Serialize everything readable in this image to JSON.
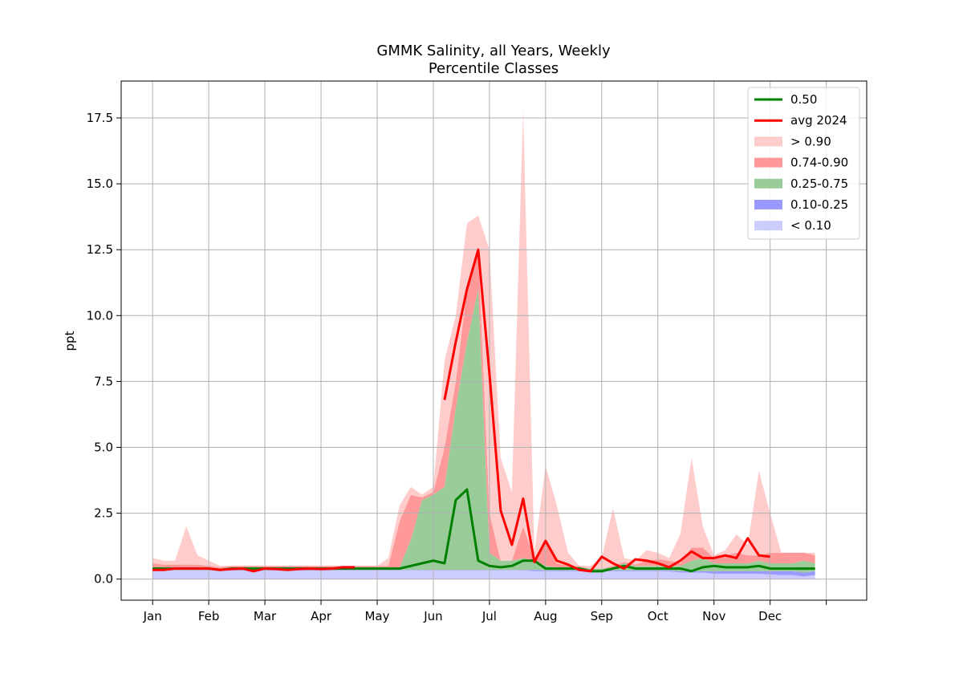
{
  "chart_data": {
    "type": "area",
    "title": "GMMK Salinity, all Years, Weekly",
    "subtitle": "Percentile Classes",
    "xlabel": "",
    "ylabel": "ppt",
    "ylim": [
      -0.8,
      18.9
    ],
    "yticks": [
      0.0,
      2.5,
      5.0,
      7.5,
      10.0,
      12.5,
      15.0,
      17.5
    ],
    "ytick_labels": [
      "0.0",
      "2.5",
      "5.0",
      "7.5",
      "10.0",
      "12.5",
      "15.0",
      "17.5"
    ],
    "x_unit": "week of year",
    "xlim": [
      -2.8,
      63.6
    ],
    "xticks": [
      0,
      5,
      10,
      15,
      20,
      25,
      30,
      35,
      40,
      45,
      50,
      55,
      60
    ],
    "xtick_labels": [
      "Jan",
      "Feb",
      "Mar",
      "Apr",
      "May",
      "Jun",
      "Jul",
      "Aug",
      "Sep",
      "Oct",
      "Nov",
      "Dec",
      ""
    ],
    "grid": true,
    "legend_position": "top-right",
    "legend": [
      {
        "label": "0.50",
        "kind": "line",
        "color": "#008000"
      },
      {
        "label": "avg 2024",
        "kind": "line",
        "color": "#ff0000"
      },
      {
        "label": "> 0.90",
        "kind": "band",
        "color": "#ffcccc"
      },
      {
        "label": "0.74-0.90",
        "kind": "band",
        "color": "#ff9999"
      },
      {
        "label": "0.25-0.75",
        "kind": "band",
        "color": "#99cc99"
      },
      {
        "label": "0.10-0.25",
        "kind": "band",
        "color": "#9999ff"
      },
      {
        "label": "< 0.10",
        "kind": "band",
        "color": "#ccccff"
      }
    ],
    "weeks": [
      0,
      1,
      2,
      3,
      4,
      5,
      6,
      7,
      8,
      9,
      10,
      11,
      12,
      13,
      14,
      15,
      16,
      17,
      18,
      19,
      20,
      21,
      22,
      23,
      24,
      25,
      26,
      27,
      28,
      29,
      30,
      31,
      32,
      33,
      34,
      35,
      36,
      37,
      38,
      39,
      40,
      41,
      42,
      43,
      44,
      45,
      46,
      47,
      48,
      49,
      50,
      51,
      52,
      53,
      54,
      55,
      56,
      57,
      58,
      59
    ],
    "p10": [
      0.35,
      0.35,
      0.35,
      0.35,
      0.35,
      0.35,
      0.33,
      0.33,
      0.33,
      0.33,
      0.33,
      0.33,
      0.33,
      0.33,
      0.33,
      0.33,
      0.33,
      0.33,
      0.33,
      0.33,
      0.33,
      0.33,
      0.33,
      0.33,
      0.33,
      0.33,
      0.33,
      0.33,
      0.33,
      0.33,
      0.33,
      0.33,
      0.33,
      0.33,
      0.3,
      0.3,
      0.3,
      0.3,
      0.3,
      0.3,
      0.3,
      0.3,
      0.3,
      0.3,
      0.3,
      0.3,
      0.3,
      0.25,
      0.25,
      0.25,
      0.2,
      0.2,
      0.2,
      0.2,
      0.2,
      0.18,
      0.15,
      0.15,
      0.1,
      0.15
    ],
    "p25": [
      0.35,
      0.35,
      0.35,
      0.35,
      0.35,
      0.35,
      0.35,
      0.35,
      0.35,
      0.35,
      0.35,
      0.35,
      0.35,
      0.35,
      0.35,
      0.35,
      0.35,
      0.35,
      0.35,
      0.35,
      0.35,
      0.35,
      0.35,
      0.35,
      0.35,
      0.35,
      0.35,
      0.35,
      0.35,
      0.35,
      0.35,
      0.35,
      0.35,
      0.35,
      0.35,
      0.33,
      0.33,
      0.33,
      0.33,
      0.33,
      0.33,
      0.33,
      0.33,
      0.33,
      0.33,
      0.33,
      0.33,
      0.3,
      0.3,
      0.3,
      0.3,
      0.3,
      0.3,
      0.3,
      0.3,
      0.3,
      0.3,
      0.3,
      0.25,
      0.3
    ],
    "p50": [
      0.4,
      0.4,
      0.4,
      0.4,
      0.4,
      0.4,
      0.35,
      0.4,
      0.4,
      0.4,
      0.4,
      0.4,
      0.4,
      0.4,
      0.4,
      0.4,
      0.4,
      0.4,
      0.4,
      0.4,
      0.4,
      0.4,
      0.4,
      0.5,
      0.6,
      0.7,
      0.6,
      3.0,
      3.4,
      0.7,
      0.5,
      0.45,
      0.5,
      0.7,
      0.7,
      0.4,
      0.4,
      0.4,
      0.4,
      0.3,
      0.3,
      0.4,
      0.5,
      0.4,
      0.4,
      0.4,
      0.4,
      0.4,
      0.3,
      0.45,
      0.5,
      0.45,
      0.45,
      0.45,
      0.5,
      0.4,
      0.4,
      0.4,
      0.4,
      0.4
    ],
    "p75": [
      0.45,
      0.45,
      0.45,
      0.45,
      0.45,
      0.45,
      0.4,
      0.45,
      0.45,
      0.45,
      0.45,
      0.45,
      0.45,
      0.45,
      0.45,
      0.45,
      0.45,
      0.45,
      0.45,
      0.45,
      0.45,
      0.45,
      0.45,
      1.5,
      3.0,
      3.2,
      3.5,
      6.5,
      9.0,
      11.0,
      1.0,
      0.7,
      0.7,
      0.8,
      0.7,
      0.5,
      0.45,
      0.45,
      0.45,
      0.4,
      0.4,
      0.45,
      0.6,
      0.5,
      0.5,
      0.5,
      0.5,
      0.5,
      0.7,
      0.8,
      0.6,
      0.6,
      0.6,
      0.6,
      0.7,
      0.6,
      0.6,
      0.6,
      0.7,
      0.6
    ],
    "p90": [
      0.6,
      0.55,
      0.55,
      0.55,
      0.55,
      0.5,
      0.45,
      0.5,
      0.5,
      0.5,
      0.5,
      0.5,
      0.5,
      0.5,
      0.5,
      0.5,
      0.5,
      0.5,
      0.5,
      0.5,
      0.5,
      0.5,
      2.2,
      3.2,
      3.1,
      3.3,
      5.0,
      7.5,
      11.0,
      12.5,
      2.5,
      0.7,
      0.7,
      2.0,
      0.8,
      1.5,
      0.6,
      0.5,
      0.5,
      0.4,
      0.4,
      0.5,
      0.65,
      0.55,
      0.7,
      0.75,
      0.7,
      0.6,
      1.2,
      1.2,
      0.8,
      0.9,
      1.0,
      0.9,
      0.9,
      1.0,
      1.0,
      1.0,
      1.0,
      0.9
    ],
    "pmax": [
      0.8,
      0.7,
      0.7,
      2.0,
      0.9,
      0.7,
      0.5,
      0.5,
      0.5,
      0.5,
      0.5,
      0.5,
      0.5,
      0.5,
      0.5,
      0.5,
      0.5,
      0.5,
      0.5,
      0.5,
      0.5,
      0.8,
      2.8,
      3.5,
      3.2,
      3.5,
      8.3,
      10.0,
      13.5,
      13.8,
      12.5,
      4.6,
      3.3,
      17.8,
      1.0,
      4.3,
      2.8,
      1.0,
      0.5,
      0.5,
      0.8,
      2.7,
      0.8,
      0.7,
      1.1,
      1.0,
      0.8,
      1.7,
      4.6,
      2.0,
      0.9,
      1.1,
      1.7,
      1.3,
      4.1,
      2.5,
      1.0,
      1.0,
      1.0,
      1.0
    ],
    "avg2024_weeks": [
      0,
      1,
      2,
      3,
      4,
      5,
      6,
      7,
      8,
      9,
      10,
      11,
      12,
      13,
      14,
      15,
      16,
      17,
      18,
      26,
      27,
      28,
      29,
      30,
      31,
      32,
      33,
      34,
      35,
      36,
      37,
      38,
      39,
      40,
      41,
      42,
      43,
      44,
      45,
      46,
      47,
      48,
      49,
      50,
      51,
      52,
      53,
      54,
      55
    ],
    "avg2024": [
      0.35,
      0.35,
      0.4,
      0.4,
      0.4,
      0.4,
      0.35,
      0.38,
      0.4,
      0.3,
      0.4,
      0.38,
      0.35,
      0.38,
      0.4,
      0.38,
      0.4,
      0.45,
      0.45,
      6.8,
      9.0,
      11.0,
      12.5,
      7.8,
      2.6,
      1.3,
      3.05,
      0.65,
      1.45,
      0.7,
      0.55,
      0.35,
      0.3,
      0.85,
      0.6,
      0.4,
      0.75,
      0.7,
      0.6,
      0.45,
      0.7,
      1.05,
      0.8,
      0.8,
      0.9,
      0.8,
      1.55,
      0.9,
      0.85
    ]
  }
}
